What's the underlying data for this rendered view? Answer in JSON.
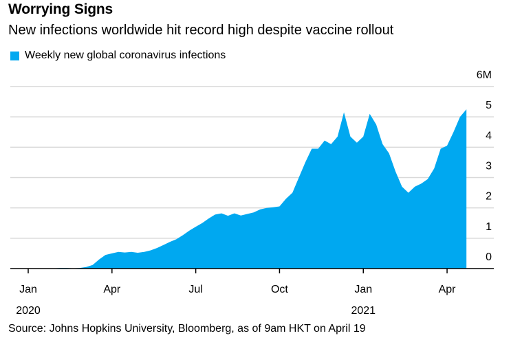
{
  "header": {
    "title": "Worrying Signs",
    "subtitle": "New infections worldwide hit record high despite vaccine rollout"
  },
  "source": "Source: Johns Hopkins University, Bloomberg, as of 9am HKT on April 19",
  "colors": {
    "area": "#00a8f0",
    "grid": "#d9d9d9",
    "axis": "#000000"
  },
  "chart_data": {
    "type": "area",
    "title": "Worrying Signs",
    "subtitle": "New infections worldwide hit record high despite vaccine rollout",
    "legend": [
      "Weekly new global coronavirus infections"
    ],
    "legend_position": "top-left",
    "xlabel": "",
    "ylabel": "",
    "ylim": [
      0,
      6
    ],
    "y_unit": "million",
    "y_ticks": [
      0,
      1,
      2,
      3,
      4,
      5,
      6
    ],
    "y_tick_labels": [
      "0",
      "1",
      "2",
      "3",
      "4",
      "5",
      "6M"
    ],
    "x_ticks": [
      {
        "week": 0,
        "label": "Jan",
        "year": "2020"
      },
      {
        "week": 13,
        "label": "Apr",
        "year": ""
      },
      {
        "week": 26,
        "label": "Jul",
        "year": ""
      },
      {
        "week": 39,
        "label": "Oct",
        "year": ""
      },
      {
        "week": 52,
        "label": "Jan",
        "year": "2021"
      },
      {
        "week": 65,
        "label": "Apr",
        "year": ""
      }
    ],
    "grid": true,
    "series": [
      {
        "name": "Weekly new global coronavirus infections",
        "x_unit": "weeks since Jan 1, 2020",
        "x": [
          0,
          1,
          2,
          3,
          4,
          5,
          6,
          7,
          8,
          9,
          10,
          11,
          12,
          13,
          14,
          15,
          16,
          17,
          18,
          19,
          20,
          21,
          22,
          23,
          24,
          25,
          26,
          27,
          28,
          29,
          30,
          31,
          32,
          33,
          34,
          35,
          36,
          37,
          38,
          39,
          40,
          41,
          42,
          43,
          44,
          45,
          46,
          47,
          48,
          49,
          50,
          51,
          52,
          53,
          54,
          55,
          56,
          57,
          58,
          59,
          60,
          61,
          62,
          63,
          64,
          65,
          66,
          67,
          68
        ],
        "values": [
          0,
          0,
          0,
          0,
          0.01,
          0.02,
          0.02,
          0.01,
          0.02,
          0.05,
          0.12,
          0.3,
          0.45,
          0.5,
          0.55,
          0.53,
          0.55,
          0.52,
          0.55,
          0.6,
          0.68,
          0.78,
          0.88,
          0.97,
          1.1,
          1.25,
          1.38,
          1.5,
          1.65,
          1.78,
          1.82,
          1.74,
          1.82,
          1.75,
          1.8,
          1.85,
          1.95,
          2.0,
          2.02,
          2.05,
          2.3,
          2.5,
          3.0,
          3.5,
          3.95,
          3.95,
          4.22,
          4.1,
          4.35,
          5.15,
          4.35,
          4.15,
          4.35,
          5.1,
          4.75,
          4.1,
          3.8,
          3.2,
          2.7,
          2.5,
          2.7,
          2.8,
          2.95,
          3.3,
          3.95,
          4.05,
          4.5,
          5.0,
          5.25
        ]
      }
    ]
  }
}
